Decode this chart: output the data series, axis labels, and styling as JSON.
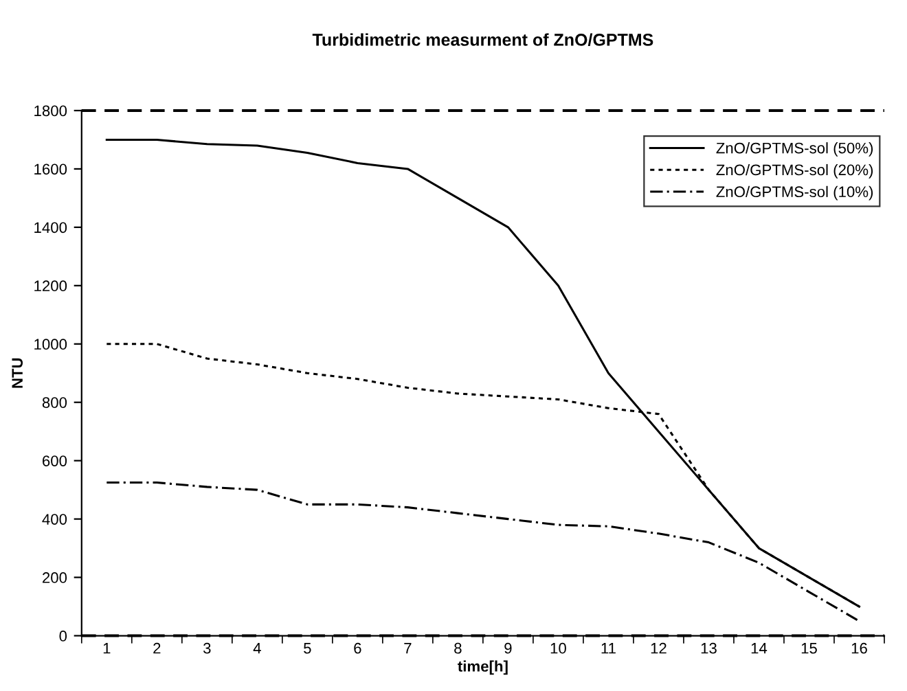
{
  "chart_data": {
    "type": "line",
    "title": "Turbidimetric measurment of ZnO/GPTMS",
    "xlabel": "time[h]",
    "ylabel": "NTU",
    "categories": [
      "1",
      "2",
      "3",
      "4",
      "5",
      "6",
      "7",
      "8",
      "9",
      "10",
      "11",
      "12",
      "13",
      "14",
      "15",
      "16"
    ],
    "series": [
      {
        "name": "ZnO/GPTMS-sol (50%)",
        "color": "#000000",
        "line_style": "solid",
        "values": [
          1700,
          1700,
          1685,
          1680,
          1655,
          1620,
          1600,
          1500,
          1400,
          1200,
          900,
          700,
          500,
          300,
          200,
          100
        ]
      },
      {
        "name": "ZnO/GPTMS-sol (20%)",
        "color": "#000000",
        "line_style": "dotted",
        "values": [
          1000,
          1000,
          950,
          930,
          900,
          880,
          850,
          830,
          820,
          810,
          780,
          760,
          500,
          300,
          200,
          100
        ]
      },
      {
        "name": "ZnO/GPTMS-sol (10%)",
        "color": "#000000",
        "line_style": "dashdot",
        "values": [
          525,
          525,
          510,
          500,
          450,
          450,
          440,
          420,
          400,
          380,
          375,
          350,
          320,
          250,
          150,
          50
        ]
      }
    ],
    "ylim": [
      0,
      1800
    ],
    "yticks": [
      0,
      200,
      400,
      600,
      800,
      1000,
      1200,
      1400,
      1600,
      1800
    ],
    "ref_lines": [
      {
        "axis": "y",
        "value": 1800,
        "color": "#000000",
        "line_style": "dashed"
      },
      {
        "axis": "y",
        "value": 0,
        "color": "#000000",
        "line_style": "dashed"
      }
    ],
    "legend": "top right",
    "grid": false,
    "marker": "none"
  }
}
